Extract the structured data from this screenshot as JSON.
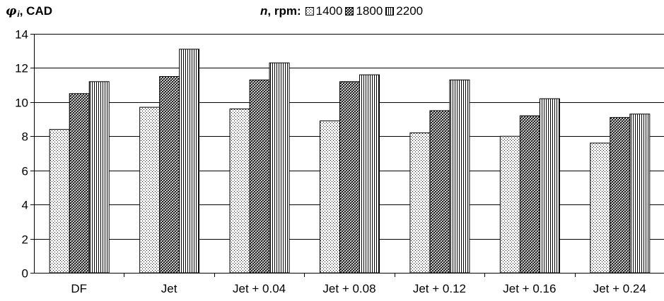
{
  "chart_data": {
    "type": "bar",
    "ylabel_symbol": "φ",
    "ylabel_sub": "i",
    "ylabel_unit": ", CAD",
    "legend_title_var": "n",
    "legend_title_rest": ", rpm:",
    "categories": [
      "DF",
      "Jet",
      "Jet + 0.04",
      "Jet + 0.08",
      "Jet + 0.12",
      "Jet + 0.16",
      "Jet + 0.24"
    ],
    "series": [
      {
        "name": "1400",
        "pattern": "dots",
        "values": [
          8.4,
          9.7,
          9.6,
          8.9,
          8.2,
          8.0,
          7.6
        ]
      },
      {
        "name": "1800",
        "pattern": "diagonal",
        "values": [
          10.5,
          11.5,
          11.3,
          11.2,
          9.5,
          9.2,
          9.1
        ]
      },
      {
        "name": "2200",
        "pattern": "vertical",
        "values": [
          11.2,
          13.1,
          12.3,
          11.6,
          11.3,
          10.2,
          9.3
        ]
      }
    ],
    "ylim": [
      0,
      14
    ],
    "yticks": [
      "0",
      "2",
      "4",
      "6",
      "8",
      "10",
      "12",
      "14"
    ],
    "grid": true,
    "legend_position": "top-center"
  }
}
